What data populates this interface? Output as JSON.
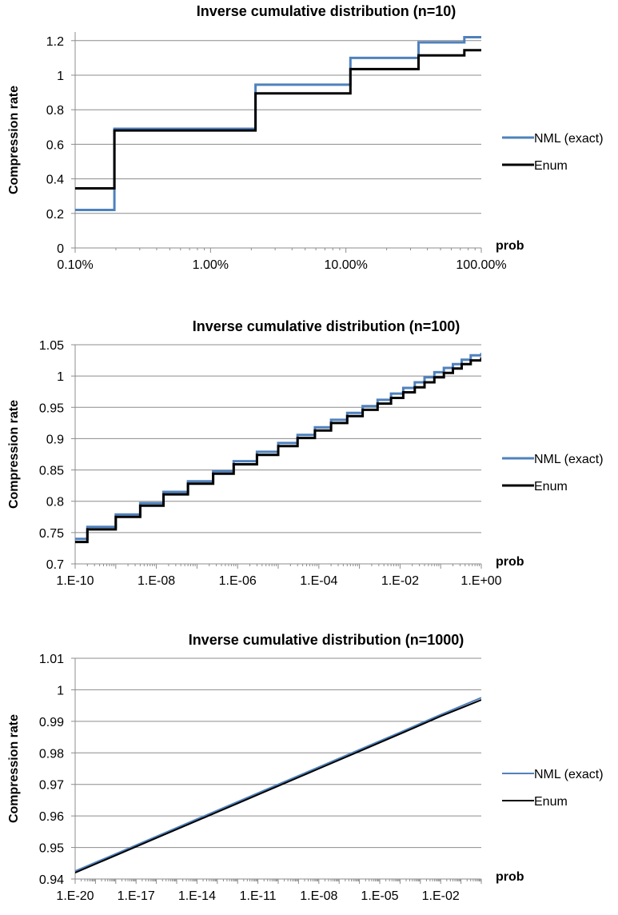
{
  "chart_data": [
    {
      "type": "line",
      "title": "Inverse cumulative distribution (n=10)",
      "xlabel": "prob",
      "ylabel": "Compression rate",
      "xscale": "log",
      "xlim": [
        0.001,
        1
      ],
      "ylim": [
        0,
        1.25
      ],
      "yticks": [
        0,
        0.2,
        0.4,
        0.6,
        0.8,
        1,
        1.2
      ],
      "ytick_labels": [
        "0",
        "0.2",
        "0.4",
        "0.6",
        "0.8",
        "1",
        "1.2"
      ],
      "xticks": [
        0.001,
        0.01,
        0.1,
        1
      ],
      "xtick_labels": [
        "0.10%",
        "1.00%",
        "10.00%",
        "100.00%"
      ],
      "grid": true,
      "legend": "right",
      "series": [
        {
          "name": "NML (exact)",
          "color": "#4f81bd",
          "step": true,
          "x": [
            0.001,
            0.00195,
            0.00195,
            0.0215,
            0.0215,
            0.108,
            0.108,
            0.344,
            0.344,
            0.75,
            0.75,
            1
          ],
          "y": [
            0.22,
            0.22,
            0.69,
            0.69,
            0.945,
            0.945,
            1.1,
            1.1,
            1.19,
            1.19,
            1.22,
            1.22
          ]
        },
        {
          "name": "Enum",
          "color": "#000000",
          "step": true,
          "x": [
            0.001,
            0.00195,
            0.00195,
            0.0215,
            0.0215,
            0.108,
            0.108,
            0.344,
            0.344,
            0.75,
            0.75,
            1
          ],
          "y": [
            0.345,
            0.345,
            0.68,
            0.68,
            0.895,
            0.895,
            1.035,
            1.035,
            1.115,
            1.115,
            1.145,
            1.145
          ]
        }
      ]
    },
    {
      "type": "line",
      "title": "Inverse cumulative distribution (n=100)",
      "xlabel": "prob",
      "ylabel": "Compression rate",
      "xscale": "log",
      "xlim": [
        1e-10,
        1
      ],
      "ylim": [
        0.7,
        1.05
      ],
      "yticks": [
        0.7,
        0.75,
        0.8,
        0.85,
        0.9,
        0.95,
        1,
        1.05
      ],
      "ytick_labels": [
        "0.7",
        "0.75",
        "0.8",
        "0.85",
        "0.9",
        "0.95",
        "1",
        "1.05"
      ],
      "xticks": [
        1e-10,
        1e-08,
        1e-06,
        0.0001,
        0.01,
        1
      ],
      "xtick_labels": [
        "1.E-10",
        "1.E-08",
        "1.E-06",
        "1.E-04",
        "1.E-02",
        "1.E+00"
      ],
      "grid": true,
      "legend": "right",
      "series": [
        {
          "name": "NML (exact)",
          "color": "#4f81bd",
          "step": true,
          "x": [
            1e-10,
            2e-10,
            1e-09,
            4e-09,
            1.5e-08,
            6e-08,
            2.5e-07,
            8e-07,
            3e-06,
            1e-05,
            3e-05,
            8e-05,
            0.0002,
            0.0005,
            0.0012,
            0.0028,
            0.006,
            0.012,
            0.023,
            0.04,
            0.07,
            0.12,
            0.2,
            0.33,
            0.55,
            1
          ],
          "y": [
            0.74,
            0.759,
            0.779,
            0.797,
            0.815,
            0.832,
            0.848,
            0.864,
            0.879,
            0.893,
            0.906,
            0.918,
            0.93,
            0.941,
            0.952,
            0.962,
            0.972,
            0.981,
            0.99,
            0.998,
            1.006,
            1.013,
            1.019,
            1.026,
            1.033,
            1.037
          ]
        },
        {
          "name": "Enum",
          "color": "#000000",
          "step": true,
          "x": [
            1e-10,
            2e-10,
            1e-09,
            4e-09,
            1.5e-08,
            6e-08,
            2.5e-07,
            8e-07,
            3e-06,
            1e-05,
            3e-05,
            8e-05,
            0.0002,
            0.0005,
            0.0012,
            0.0028,
            0.006,
            0.012,
            0.023,
            0.04,
            0.07,
            0.12,
            0.2,
            0.33,
            0.55,
            1
          ],
          "y": [
            0.735,
            0.755,
            0.775,
            0.793,
            0.811,
            0.828,
            0.844,
            0.859,
            0.874,
            0.888,
            0.901,
            0.913,
            0.925,
            0.936,
            0.946,
            0.956,
            0.965,
            0.974,
            0.982,
            0.99,
            0.998,
            1.005,
            1.012,
            1.019,
            1.025,
            1.03
          ]
        }
      ]
    },
    {
      "type": "line",
      "title": "Inverse cumulative distribution (n=1000)",
      "xlabel": "prob",
      "ylabel": "Compression rate",
      "xscale": "log",
      "xlim": [
        1e-20,
        1
      ],
      "ylim": [
        0.94,
        1.01
      ],
      "yticks": [
        0.94,
        0.95,
        0.96,
        0.97,
        0.98,
        0.99,
        1,
        1.01
      ],
      "ytick_labels": [
        "0.94",
        "0.95",
        "0.96",
        "0.97",
        "0.98",
        "0.99",
        "1",
        "1.01"
      ],
      "xticks": [
        1e-20,
        1e-17,
        1e-14,
        1e-11,
        1e-08,
        1e-05,
        0.01
      ],
      "xtick_labels": [
        "1.E-20",
        "1.E-17",
        "1.E-14",
        "1.E-11",
        "1.E-08",
        "1.E-05",
        "1.E-02"
      ],
      "grid": true,
      "legend": "right",
      "series": [
        {
          "name": "NML (exact)",
          "color": "#4f81bd",
          "step": false,
          "x": [
            1e-20,
            1e-18,
            1e-16,
            1e-14,
            1e-12,
            1e-10,
            1e-08,
            1e-06,
            0.0001,
            0.001,
            0.01,
            0.1,
            1
          ],
          "y": [
            0.9425,
            0.948,
            0.9535,
            0.959,
            0.9645,
            0.97,
            0.9755,
            0.981,
            0.9865,
            0.9893,
            0.9921,
            0.9948,
            0.9975
          ]
        },
        {
          "name": "Enum",
          "color": "#000000",
          "step": false,
          "x": [
            1e-20,
            1e-18,
            1e-16,
            1e-14,
            1e-12,
            1e-10,
            1e-08,
            1e-06,
            0.0001,
            0.001,
            0.01,
            0.1,
            1
          ],
          "y": [
            0.942,
            0.9475,
            0.953,
            0.9585,
            0.964,
            0.9695,
            0.975,
            0.9805,
            0.986,
            0.9888,
            0.9916,
            0.9942,
            0.9968
          ]
        }
      ]
    }
  ]
}
